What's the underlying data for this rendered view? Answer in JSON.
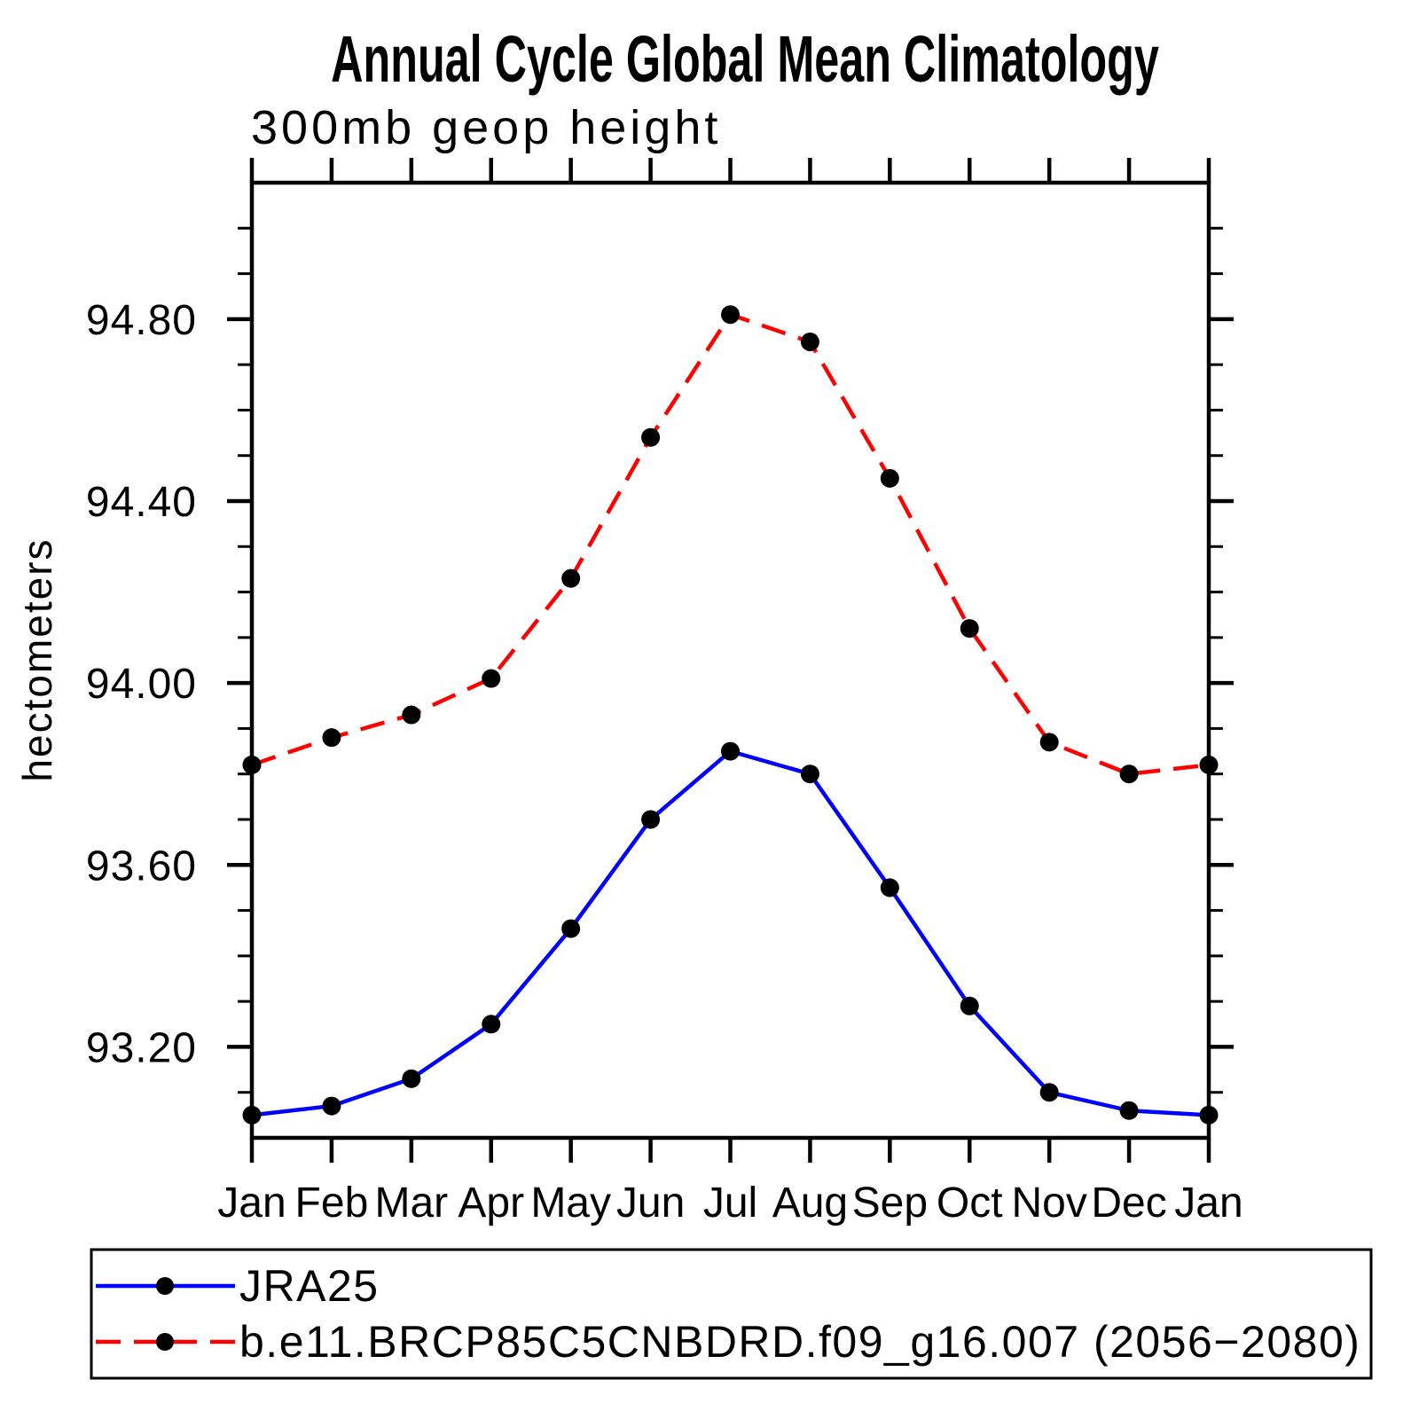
{
  "page": {
    "background": "#ffffff"
  },
  "chart_data": {
    "type": "line",
    "title": "Annual Cycle Global Mean Climatology",
    "subtitle": "300mb geop height",
    "ylabel": "hectometers",
    "xlabel": "",
    "x_categories": [
      "Jan",
      "Feb",
      "Mar",
      "Apr",
      "May",
      "Jun",
      "Jul",
      "Aug",
      "Sep",
      "Oct",
      "Nov",
      "Dec",
      "Jan"
    ],
    "y_tick_labels": [
      "93.20",
      "93.60",
      "94.00",
      "94.40",
      "94.80"
    ],
    "y_ticks_major": [
      93.2,
      93.6,
      94.0,
      94.4,
      94.8
    ],
    "y_minor_step": 0.1,
    "ylim": [
      93.0,
      95.1
    ],
    "grid": false,
    "legend_position": "bottom-left",
    "series": [
      {
        "name": "JRA25",
        "color": "#0000ff",
        "line_style": "solid",
        "marker": "circle",
        "marker_color": "#000000",
        "values": [
          93.05,
          93.07,
          93.13,
          93.25,
          93.46,
          93.7,
          93.85,
          93.8,
          93.55,
          93.29,
          93.1,
          93.06,
          93.05
        ]
      },
      {
        "name": "b.e11.BRCP85C5CNBDRD.f09_g16.007 (2056−2080)",
        "color": "#ff0000",
        "line_style": "dashed",
        "marker": "circle",
        "marker_color": "#000000",
        "values": [
          93.82,
          93.88,
          93.93,
          94.01,
          94.23,
          94.54,
          94.81,
          94.75,
          94.45,
          94.12,
          93.87,
          93.8,
          93.82
        ]
      }
    ]
  }
}
